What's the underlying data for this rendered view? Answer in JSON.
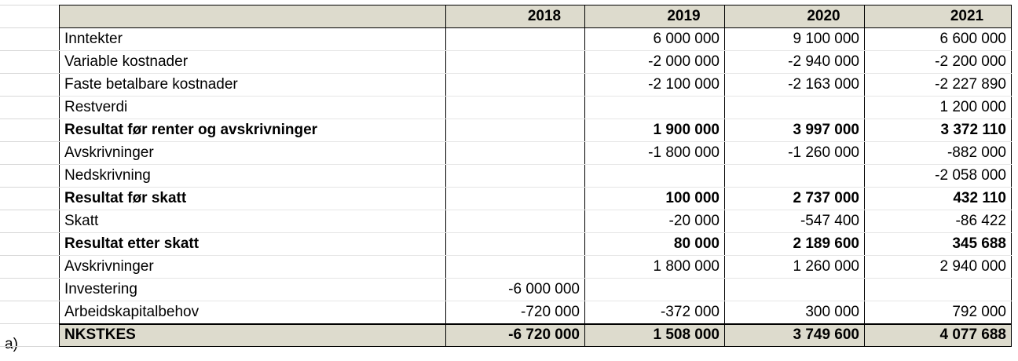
{
  "table": {
    "years": [
      "2018",
      "2019",
      "2020",
      "2021"
    ],
    "rows": [
      {
        "label": "Inntekter",
        "values": [
          "",
          "6 000 000",
          "9 100 000",
          "6 600 000"
        ],
        "bold": false
      },
      {
        "label": "Variable kostnader",
        "values": [
          "",
          "-2 000 000",
          "-2 940 000",
          "-2 200 000"
        ],
        "bold": false
      },
      {
        "label": "Faste betalbare kostnader",
        "values": [
          "",
          "-2 100 000",
          "-2 163 000",
          "-2 227 890"
        ],
        "bold": false
      },
      {
        "label": "Restverdi",
        "values": [
          "",
          "",
          "",
          "1 200 000"
        ],
        "bold": false
      },
      {
        "label": "Resultat før renter og avskrivninger",
        "values": [
          "",
          "1 900 000",
          "3 997 000",
          "3 372 110"
        ],
        "bold": true
      },
      {
        "label": "Avskrivninger",
        "values": [
          "",
          "-1 800 000",
          "-1 260 000",
          "-882 000"
        ],
        "bold": false
      },
      {
        "label": "Nedskrivning",
        "values": [
          "",
          "",
          "",
          "-2 058 000"
        ],
        "bold": false
      },
      {
        "label": "Resultat før skatt",
        "values": [
          "",
          "100 000",
          "2 737 000",
          "432 110"
        ],
        "bold": true
      },
      {
        "label": "Skatt",
        "values": [
          "",
          "-20 000",
          "-547 400",
          "-86 422"
        ],
        "bold": false
      },
      {
        "label": "Resultat etter skatt",
        "values": [
          "",
          "80 000",
          "2 189 600",
          "345 688"
        ],
        "bold": true
      },
      {
        "label": " Avskrivninger",
        "values": [
          "",
          "1 800 000",
          "1 260 000",
          "2 940 000"
        ],
        "bold": false
      },
      {
        "label": "Investering",
        "values": [
          "-6 000 000",
          "",
          "",
          ""
        ],
        "bold": false
      },
      {
        "label": "Arbeidskapitalbehov",
        "values": [
          "-720 000",
          "-372 000",
          "300 000",
          "792 000"
        ],
        "bold": false
      }
    ],
    "total": {
      "label": "NKSTKES",
      "values": [
        "-6 720 000",
        "1 508 000",
        "3 749 600",
        "4 077 688"
      ]
    }
  },
  "gutter": {
    "total_row_marker": "a)"
  }
}
